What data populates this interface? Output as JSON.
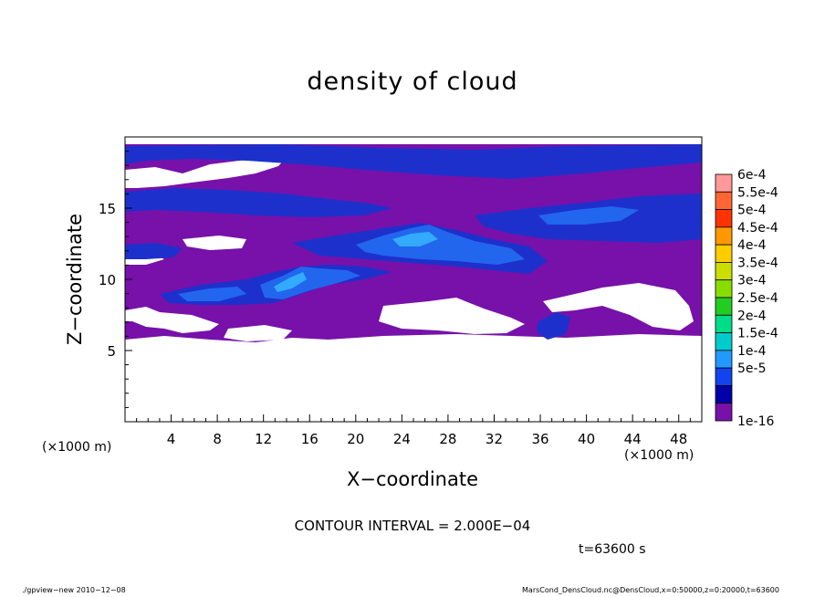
{
  "chart_data": {
    "type": "heatmap",
    "title": "density of cloud",
    "xlabel": "X−coordinate",
    "ylabel": "Z−coordinate",
    "x_unit_left": "(×1000 m)",
    "x_unit_right": "(×1000 m)",
    "xlim": [
      0,
      50
    ],
    "ylim": [
      0,
      20
    ],
    "xticks": [
      4,
      8,
      12,
      16,
      20,
      24,
      28,
      32,
      36,
      40,
      44,
      48
    ],
    "yticks": [
      5,
      10,
      15
    ],
    "colorbar": {
      "labels": [
        "6e-4",
        "5.5e-4",
        "5e-4",
        "4.5e-4",
        "4e-4",
        "3.5e-4",
        "3e-4",
        "2.5e-4",
        "2e-4",
        "1.5e-4",
        "1e-4",
        "5e-5",
        "1e-16"
      ],
      "colors": [
        "#ff9999",
        "#ff6633",
        "#ff3300",
        "#ff9900",
        "#ffcc00",
        "#ccdd00",
        "#88dd00",
        "#22cc22",
        "#00dd88",
        "#00cccc",
        "#2299ff",
        "#1144ee",
        "#0000aa",
        "#7711aa"
      ]
    },
    "contour_interval": "CONTOUR INTERVAL = 2.000E−04",
    "time_label": "t=63600 s"
  },
  "footer": {
    "left": "./gpview−new   2010−12−08",
    "right": "MarsCond_DensCloud.nc@DensCloud,x=0:50000,z=0:20000,t=63600"
  },
  "colors": {
    "background_purple": "#7711aa",
    "cloud_blue": "#1e36d6",
    "dense_blue": "#2266ee",
    "bright_blue": "#33aaff"
  }
}
